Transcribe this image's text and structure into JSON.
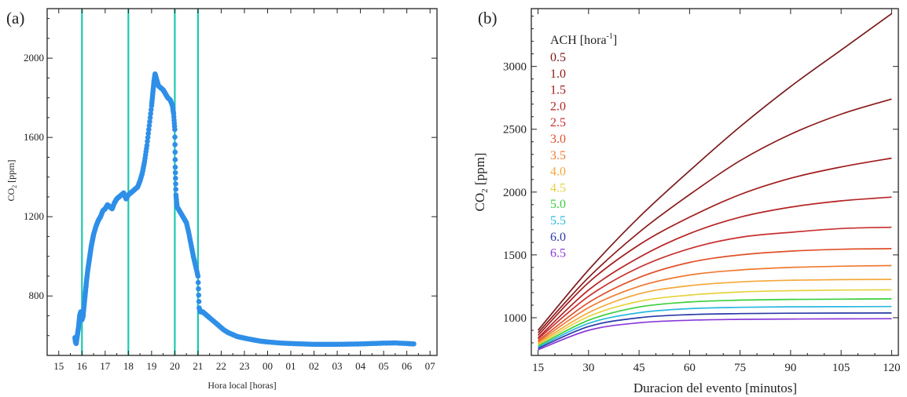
{
  "chart_data": [
    {
      "panel": "(a)",
      "type": "scatter",
      "xlabel": "Hora local [horas]",
      "ylabel": "CO2 [ppm]",
      "ylabel_main": "CO",
      "ylabel_sub": "2",
      "ylabel_rest": " [ppm]",
      "x_tick_labels": [
        "15",
        "16",
        "17",
        "18",
        "19",
        "20",
        "21",
        "22",
        "23",
        "00",
        "01",
        "02",
        "03",
        "04",
        "05",
        "06",
        "07"
      ],
      "y_ticks": [
        800,
        1200,
        1600,
        2000
      ],
      "xlim": [
        14.5,
        31.3
      ],
      "ylim": [
        500,
        2250
      ],
      "vertical_lines": [
        16,
        18,
        20,
        21
      ],
      "vertical_line_color": "#1ec8b0",
      "point_color": "#2f8fe8",
      "series": [
        {
          "x": [
            15.7,
            15.72,
            15.75,
            15.8,
            15.85,
            15.9,
            15.95,
            16.0,
            16.05,
            16.1,
            16.15,
            16.2,
            16.25,
            16.3,
            16.35,
            16.4,
            16.45,
            16.5,
            16.6,
            16.7,
            16.8,
            16.9,
            17.0,
            17.1,
            17.2,
            17.3,
            17.4,
            17.5,
            17.6,
            17.7,
            17.8,
            17.9,
            18.0,
            18.1,
            18.2,
            18.3,
            18.4,
            18.5,
            18.6,
            18.7,
            18.8,
            18.9,
            19.0,
            19.05,
            19.1,
            19.15,
            19.2,
            19.3,
            19.4,
            19.5,
            19.6,
            19.7,
            19.8,
            19.9,
            19.95,
            20.0,
            20.02,
            20.05,
            20.1,
            20.2,
            20.3,
            20.4,
            20.5,
            20.6,
            20.7,
            20.8,
            20.9,
            21.0,
            21.05,
            21.1,
            21.2,
            21.3,
            21.4,
            21.5,
            21.7,
            21.9,
            22.1,
            22.3,
            22.5,
            22.7,
            22.9,
            23.1,
            23.4,
            23.7,
            24.0,
            24.5,
            25.0,
            25.5,
            26.0,
            26.5,
            27.0,
            27.5,
            28.0,
            28.5,
            29.0,
            29.5,
            30.0,
            30.3
          ],
          "y": [
            590,
            570,
            560,
            600,
            640,
            700,
            720,
            680,
            700,
            760,
            820,
            880,
            930,
            970,
            1010,
            1050,
            1080,
            1110,
            1150,
            1180,
            1200,
            1230,
            1240,
            1260,
            1250,
            1240,
            1270,
            1290,
            1300,
            1310,
            1320,
            1290,
            1310,
            1320,
            1330,
            1340,
            1350,
            1380,
            1420,
            1480,
            1560,
            1660,
            1760,
            1820,
            1880,
            1920,
            1900,
            1860,
            1850,
            1840,
            1820,
            1800,
            1790,
            1760,
            1720,
            1640,
            1450,
            1310,
            1250,
            1230,
            1210,
            1190,
            1170,
            1120,
            1060,
            1000,
            950,
            900,
            740,
            720,
            720,
            710,
            700,
            690,
            670,
            650,
            630,
            615,
            605,
            595,
            590,
            585,
            578,
            572,
            568,
            563,
            560,
            558,
            556,
            556,
            556,
            557,
            558,
            560,
            562,
            563,
            560,
            558
          ]
        }
      ]
    },
    {
      "panel": "(b)",
      "type": "line",
      "xlabel": "Duracion del evento [minutos]",
      "ylabel": "CO2 [ppm]",
      "ylabel_main": "CO",
      "ylabel_sub": "2",
      "ylabel_rest": " [ppm]",
      "x_ticks": [
        15,
        30,
        45,
        60,
        75,
        90,
        105,
        120
      ],
      "y_ticks": [
        1000,
        1500,
        2000,
        2500,
        3000
      ],
      "xlim": [
        13,
        122
      ],
      "ylim": [
        700,
        3460
      ],
      "legend_title_main": "ACH [hora",
      "legend_title_sup": "-1",
      "legend_title_end": "]",
      "legend_position": "top-left",
      "x": [
        15,
        30,
        45,
        60,
        75,
        90,
        105,
        120
      ],
      "series": [
        {
          "name": "0.5",
          "color": "#7a1a1a",
          "values": [
            900,
            1380,
            1800,
            2170,
            2520,
            2840,
            3130,
            3420
          ]
        },
        {
          "name": "1.0",
          "color": "#8b1a1a",
          "values": [
            880,
            1320,
            1680,
            1980,
            2250,
            2460,
            2620,
            2740
          ]
        },
        {
          "name": "1.5",
          "color": "#a11c1c",
          "values": [
            860,
            1280,
            1580,
            1800,
            1980,
            2110,
            2200,
            2270
          ]
        },
        {
          "name": "2.0",
          "color": "#b52424",
          "values": [
            840,
            1220,
            1480,
            1670,
            1800,
            1880,
            1930,
            1960
          ]
        },
        {
          "name": "2.5",
          "color": "#c83030",
          "values": [
            830,
            1170,
            1400,
            1550,
            1640,
            1680,
            1710,
            1720
          ]
        },
        {
          "name": "3.0",
          "color": "#e0502a",
          "values": [
            815,
            1120,
            1320,
            1440,
            1500,
            1530,
            1545,
            1550
          ]
        },
        {
          "name": "3.5",
          "color": "#f07a30",
          "values": [
            805,
            1080,
            1250,
            1340,
            1380,
            1400,
            1410,
            1415
          ]
        },
        {
          "name": "4.0",
          "color": "#f4a83a",
          "values": [
            795,
            1040,
            1190,
            1255,
            1285,
            1298,
            1303,
            1305
          ]
        },
        {
          "name": "4.5",
          "color": "#e6d23c",
          "values": [
            785,
            1010,
            1130,
            1180,
            1205,
            1215,
            1220,
            1222
          ]
        },
        {
          "name": "5.0",
          "color": "#3ccf3c",
          "values": [
            775,
            980,
            1085,
            1125,
            1140,
            1146,
            1148,
            1150
          ]
        },
        {
          "name": "5.5",
          "color": "#2ab8e0",
          "values": [
            765,
            955,
            1040,
            1072,
            1083,
            1087,
            1088,
            1089
          ]
        },
        {
          "name": "6.0",
          "color": "#2a3aa8",
          "values": [
            755,
            930,
            1000,
            1025,
            1033,
            1036,
            1037,
            1038
          ]
        },
        {
          "name": "6.5",
          "color": "#8a3ad8",
          "values": [
            745,
            900,
            960,
            980,
            987,
            990,
            991,
            992
          ]
        }
      ]
    }
  ]
}
